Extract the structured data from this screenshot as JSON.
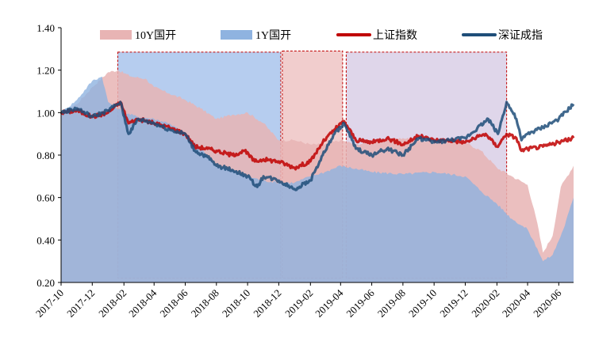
{
  "chart_data": {
    "type": "area",
    "x_ticks": [
      "2017-10",
      "2017-12",
      "2018-02",
      "2018-04",
      "2018-06",
      "2018-08",
      "2018-10",
      "2018-12",
      "2019-02",
      "2019-04",
      "2019-06",
      "2019-08",
      "2019-10",
      "2019-12",
      "2020-02",
      "2020-04",
      "2020-06"
    ],
    "y_ticks": [
      "0.20",
      "0.40",
      "0.60",
      "0.80",
      "1.00",
      "1.20",
      "1.40"
    ],
    "ylim": [
      0.2,
      1.4
    ],
    "xlim": [
      "2017-10-01",
      "2020-06-30"
    ],
    "legend_position": "top",
    "colors": {
      "y10": "#e8b4b4",
      "y1": "#8fb3e0",
      "sh": "#c00000",
      "sz": "#1f4e79",
      "box_border": "#c00000",
      "box1_fill": "#a9c4ec",
      "box2_fill": "#eec4c4",
      "box3_fill": "#d9cfe6"
    },
    "series": [
      {
        "name": "10Y国开",
        "kind": "area",
        "color": "#e8b4b4",
        "points": [
          [
            "2017-10-01",
            1.0
          ],
          [
            "2017-11-01",
            1.04
          ],
          [
            "2017-12-01",
            1.12
          ],
          [
            "2018-01-01",
            1.19
          ],
          [
            "2018-01-20",
            1.2
          ],
          [
            "2018-02-15",
            1.17
          ],
          [
            "2018-03-15",
            1.16
          ],
          [
            "2018-04-01",
            1.12
          ],
          [
            "2018-05-01",
            1.09
          ],
          [
            "2018-06-01",
            1.06
          ],
          [
            "2018-07-01",
            1.02
          ],
          [
            "2018-08-01",
            0.97
          ],
          [
            "2018-09-01",
            0.99
          ],
          [
            "2018-10-01",
            1.0
          ],
          [
            "2018-11-01",
            0.95
          ],
          [
            "2018-12-01",
            0.87
          ],
          [
            "2019-01-01",
            0.87
          ],
          [
            "2019-02-01",
            0.85
          ],
          [
            "2019-03-01",
            0.85
          ],
          [
            "2019-04-01",
            0.87
          ],
          [
            "2019-05-01",
            0.85
          ],
          [
            "2019-06-01",
            0.86
          ],
          [
            "2019-07-01",
            0.87
          ],
          [
            "2019-08-01",
            0.88
          ],
          [
            "2019-09-01",
            0.87
          ],
          [
            "2019-10-01",
            0.86
          ],
          [
            "2019-11-01",
            0.87
          ],
          [
            "2019-12-01",
            0.86
          ],
          [
            "2020-01-01",
            0.82
          ],
          [
            "2020-02-01",
            0.74
          ],
          [
            "2020-03-01",
            0.7
          ],
          [
            "2020-04-01",
            0.66
          ],
          [
            "2020-04-20",
            0.48
          ],
          [
            "2020-05-01",
            0.34
          ],
          [
            "2020-05-20",
            0.42
          ],
          [
            "2020-06-05",
            0.65
          ],
          [
            "2020-06-30",
            0.75
          ]
        ]
      },
      {
        "name": "1Y国开",
        "kind": "area",
        "color": "#8fb3e0",
        "points": [
          [
            "2017-10-01",
            1.0
          ],
          [
            "2017-11-01",
            1.06
          ],
          [
            "2017-12-01",
            1.15
          ],
          [
            "2017-12-20",
            1.17
          ],
          [
            "2018-01-01",
            1.05
          ],
          [
            "2018-02-01",
            1.0
          ],
          [
            "2018-03-01",
            0.98
          ],
          [
            "2018-04-01",
            0.97
          ],
          [
            "2018-05-01",
            0.95
          ],
          [
            "2018-06-01",
            0.9
          ],
          [
            "2018-07-01",
            0.83
          ],
          [
            "2018-08-01",
            0.75
          ],
          [
            "2018-09-01",
            0.73
          ],
          [
            "2018-10-01",
            0.7
          ],
          [
            "2018-11-01",
            0.68
          ],
          [
            "2018-12-01",
            0.67
          ],
          [
            "2019-01-01",
            0.67
          ],
          [
            "2019-02-01",
            0.7
          ],
          [
            "2019-03-01",
            0.72
          ],
          [
            "2019-04-01",
            0.75
          ],
          [
            "2019-06-01",
            0.72
          ],
          [
            "2019-08-01",
            0.71
          ],
          [
            "2019-10-01",
            0.72
          ],
          [
            "2019-12-01",
            0.7
          ],
          [
            "2020-01-01",
            0.63
          ],
          [
            "2020-02-01",
            0.57
          ],
          [
            "2020-03-01",
            0.5
          ],
          [
            "2020-04-01",
            0.45
          ],
          [
            "2020-04-20",
            0.36
          ],
          [
            "2020-05-01",
            0.3
          ],
          [
            "2020-05-20",
            0.33
          ],
          [
            "2020-06-10",
            0.45
          ],
          [
            "2020-06-30",
            0.6
          ]
        ]
      },
      {
        "name": "上证指数",
        "kind": "line",
        "color": "#c00000",
        "points": [
          [
            "2017-10-01",
            1.0
          ],
          [
            "2017-11-01",
            1.01
          ],
          [
            "2017-12-01",
            0.98
          ],
          [
            "2018-01-01",
            1.0
          ],
          [
            "2018-01-25",
            1.05
          ],
          [
            "2018-02-10",
            0.95
          ],
          [
            "2018-03-01",
            0.97
          ],
          [
            "2018-04-01",
            0.95
          ],
          [
            "2018-05-01",
            0.93
          ],
          [
            "2018-06-01",
            0.9
          ],
          [
            "2018-06-20",
            0.84
          ],
          [
            "2018-07-15",
            0.83
          ],
          [
            "2018-08-01",
            0.82
          ],
          [
            "2018-09-01",
            0.8
          ],
          [
            "2018-09-25",
            0.82
          ],
          [
            "2018-10-15",
            0.77
          ],
          [
            "2018-11-01",
            0.78
          ],
          [
            "2018-12-01",
            0.77
          ],
          [
            "2019-01-01",
            0.74
          ],
          [
            "2019-02-01",
            0.77
          ],
          [
            "2019-02-25",
            0.86
          ],
          [
            "2019-03-20",
            0.92
          ],
          [
            "2019-04-08",
            0.96
          ],
          [
            "2019-05-01",
            0.87
          ],
          [
            "2019-06-01",
            0.86
          ],
          [
            "2019-07-01",
            0.88
          ],
          [
            "2019-08-01",
            0.85
          ],
          [
            "2019-09-01",
            0.89
          ],
          [
            "2019-10-01",
            0.87
          ],
          [
            "2019-11-01",
            0.87
          ],
          [
            "2019-12-01",
            0.86
          ],
          [
            "2020-01-10",
            0.9
          ],
          [
            "2020-02-01",
            0.84
          ],
          [
            "2020-02-20",
            0.9
          ],
          [
            "2020-03-10",
            0.88
          ],
          [
            "2020-03-20",
            0.82
          ],
          [
            "2020-04-01",
            0.83
          ],
          [
            "2020-05-01",
            0.84
          ],
          [
            "2020-06-01",
            0.86
          ],
          [
            "2020-06-30",
            0.88
          ]
        ]
      },
      {
        "name": "深证成指",
        "kind": "line",
        "color": "#1f4e79",
        "points": [
          [
            "2017-10-01",
            1.0
          ],
          [
            "2017-11-01",
            1.02
          ],
          [
            "2017-12-01",
            0.98
          ],
          [
            "2018-01-01",
            1.01
          ],
          [
            "2018-01-25",
            1.05
          ],
          [
            "2018-02-10",
            0.9
          ],
          [
            "2018-03-01",
            0.97
          ],
          [
            "2018-04-01",
            0.95
          ],
          [
            "2018-05-01",
            0.92
          ],
          [
            "2018-06-01",
            0.9
          ],
          [
            "2018-06-20",
            0.82
          ],
          [
            "2018-07-15",
            0.79
          ],
          [
            "2018-08-01",
            0.75
          ],
          [
            "2018-09-01",
            0.73
          ],
          [
            "2018-10-01",
            0.7
          ],
          [
            "2018-10-20",
            0.65
          ],
          [
            "2018-11-01",
            0.7
          ],
          [
            "2018-12-01",
            0.68
          ],
          [
            "2019-01-01",
            0.64
          ],
          [
            "2019-02-01",
            0.68
          ],
          [
            "2019-02-25",
            0.8
          ],
          [
            "2019-03-20",
            0.9
          ],
          [
            "2019-04-08",
            0.95
          ],
          [
            "2019-05-01",
            0.83
          ],
          [
            "2019-06-01",
            0.8
          ],
          [
            "2019-07-01",
            0.83
          ],
          [
            "2019-08-01",
            0.8
          ],
          [
            "2019-09-01",
            0.88
          ],
          [
            "2019-10-01",
            0.86
          ],
          [
            "2019-11-01",
            0.87
          ],
          [
            "2019-12-01",
            0.88
          ],
          [
            "2020-01-15",
            0.97
          ],
          [
            "2020-02-03",
            0.9
          ],
          [
            "2020-02-20",
            1.05
          ],
          [
            "2020-03-10",
            0.97
          ],
          [
            "2020-03-20",
            0.87
          ],
          [
            "2020-04-01",
            0.9
          ],
          [
            "2020-05-01",
            0.93
          ],
          [
            "2020-06-01",
            0.97
          ],
          [
            "2020-06-30",
            1.04
          ]
        ]
      }
    ],
    "highlight_periods": [
      {
        "start": "2018-01-20",
        "end": "2018-12-05",
        "ymin": 0.22,
        "ymax": 1.285,
        "color": "#a9c4ec"
      },
      {
        "start": "2018-12-08",
        "end": "2019-04-05",
        "ymin": 0.22,
        "ymax": 1.29,
        "color": "#eec4c4"
      },
      {
        "start": "2019-04-12",
        "end": "2020-02-20",
        "ymin": 0.22,
        "ymax": 1.285,
        "color": "#d9cfe6"
      }
    ]
  }
}
